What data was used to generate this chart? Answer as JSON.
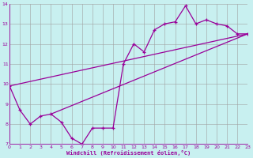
{
  "background_color": "#c8f0f0",
  "line_color": "#990099",
  "grid_color": "#a0a0a0",
  "xlabel": "Windchill (Refroidissement éolien,°C)",
  "xlim": [
    0,
    23
  ],
  "ylim": [
    7,
    14
  ],
  "xticks": [
    0,
    1,
    2,
    3,
    4,
    5,
    6,
    7,
    8,
    9,
    10,
    11,
    12,
    13,
    14,
    15,
    16,
    17,
    18,
    19,
    20,
    21,
    22,
    23
  ],
  "yticks": [
    7,
    8,
    9,
    10,
    11,
    12,
    13,
    14
  ],
  "main_x": [
    0,
    1,
    2,
    3,
    4,
    5,
    6,
    7,
    8,
    9,
    10,
    11,
    12,
    13,
    14,
    15,
    16,
    17,
    18,
    19,
    20,
    21,
    22,
    23
  ],
  "main_y": [
    9.9,
    8.7,
    8.0,
    8.4,
    8.5,
    8.1,
    7.3,
    7.0,
    7.8,
    7.8,
    7.8,
    11.0,
    12.0,
    11.6,
    12.7,
    13.0,
    13.1,
    13.9,
    13.0,
    13.2,
    13.0,
    12.9,
    12.5,
    12.5
  ],
  "line1_x": [
    0,
    23
  ],
  "line1_y": [
    9.9,
    12.5
  ],
  "line2_x": [
    4,
    23
  ],
  "line2_y": [
    8.5,
    12.5
  ]
}
